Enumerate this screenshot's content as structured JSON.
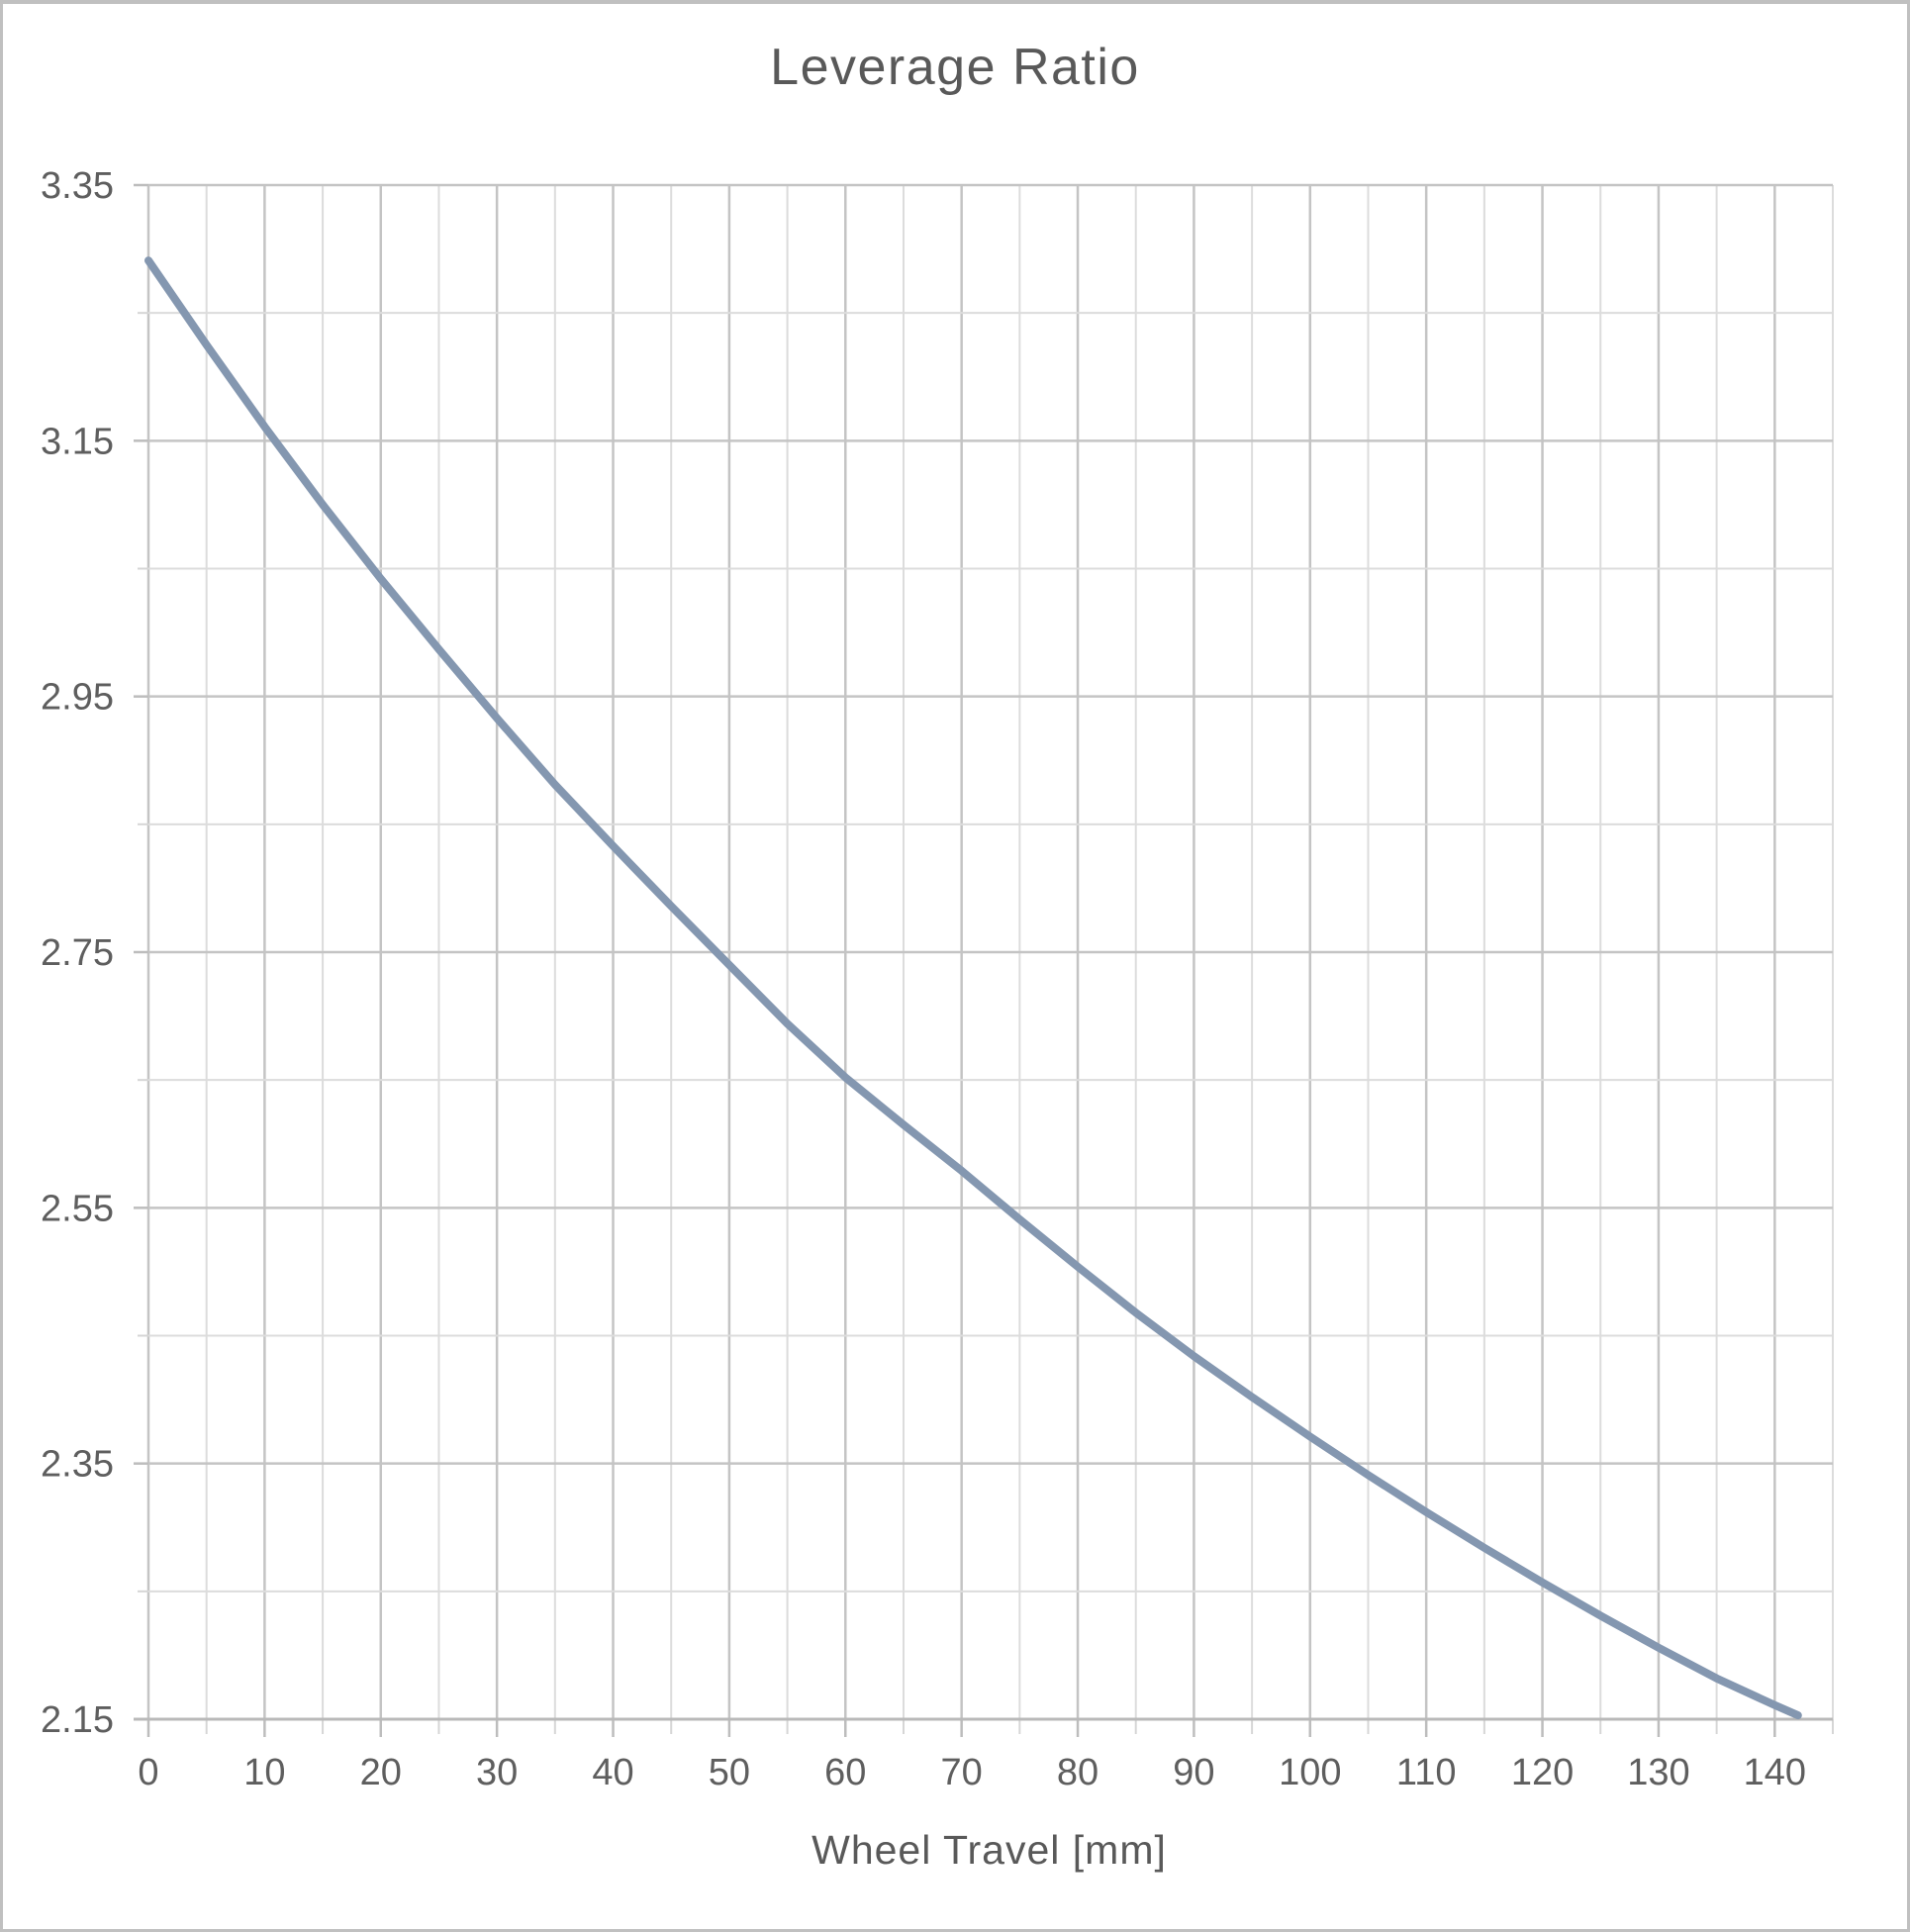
{
  "chart_data": {
    "type": "line",
    "title": "Leverage Ratio",
    "xlabel": "Wheel Travel [mm]",
    "ylabel": "",
    "xlim": [
      0,
      145
    ],
    "ylim": [
      2.15,
      3.35
    ],
    "x_major_step": 10,
    "x_minor_step": 5,
    "y_major_step": 0.2,
    "y_minor_step": 0.1,
    "grid": true,
    "legend": "none",
    "x_tick_labels": [
      "0",
      "10",
      "20",
      "30",
      "40",
      "50",
      "60",
      "70",
      "80",
      "90",
      "100",
      "110",
      "120",
      "130",
      "140"
    ],
    "y_tick_labels": [
      "3.35",
      "3.15",
      "2.95",
      "2.75",
      "2.55",
      "2.35",
      "2.15"
    ],
    "series": [
      {
        "name": "Leverage Ratio",
        "x": [
          0,
          5,
          10,
          15,
          20,
          25,
          30,
          35,
          40,
          45,
          50,
          55,
          60,
          65,
          70,
          75,
          80,
          85,
          90,
          95,
          100,
          105,
          110,
          115,
          120,
          125,
          130,
          135,
          140,
          142
        ],
        "y": [
          3.291,
          3.225,
          3.161,
          3.1,
          3.042,
          2.987,
          2.933,
          2.881,
          2.833,
          2.786,
          2.74,
          2.694,
          2.652,
          2.615,
          2.579,
          2.541,
          2.504,
          2.468,
          2.434,
          2.402,
          2.371,
          2.341,
          2.312,
          2.284,
          2.257,
          2.231,
          2.206,
          2.182,
          2.161,
          2.153
        ]
      }
    ],
    "colors": {
      "line": "#8497B0",
      "grid_major": "#c4c4c4",
      "grid_minor": "#dcdcdc",
      "axis": "#b9b9b9",
      "tick_major": "#bdbdbd",
      "tick_minor": "#d6d6d6",
      "text": "#5e5e5e",
      "title_text": "#595959",
      "frame_border": "#c0c0c0",
      "background": "#ffffff"
    }
  }
}
